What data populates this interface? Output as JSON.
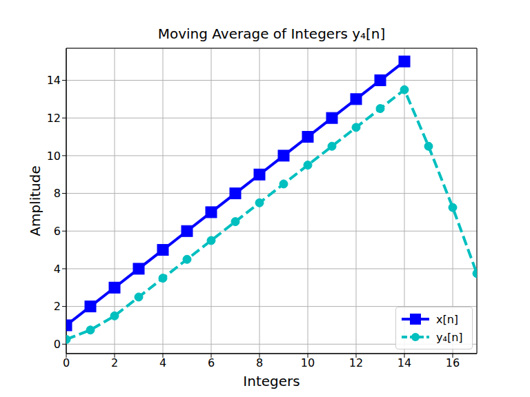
{
  "chart_data": {
    "type": "line",
    "title": "Moving Average of Integers y₄[n]",
    "x_label": "Integers",
    "y_label": "Amplitude",
    "x": [
      0,
      1,
      2,
      3,
      4,
      5,
      6,
      7,
      8,
      9,
      10,
      11,
      12,
      13,
      14,
      15,
      16,
      17
    ],
    "series": [
      {
        "name": "x[n]",
        "color": "#0000ff",
        "marker": "square",
        "line_style": "solid",
        "values": [
          1,
          2,
          3,
          4,
          5,
          6,
          7,
          8,
          9,
          10,
          11,
          12,
          13,
          14,
          15,
          null,
          null,
          null
        ]
      },
      {
        "name": "y₄[n]",
        "color": "#00bfbf",
        "marker": "circle",
        "line_style": "dashed",
        "values": [
          0.25,
          0.75,
          1.5,
          2.5,
          3.5,
          4.5,
          5.5,
          6.5,
          7.5,
          8.5,
          9.5,
          10.5,
          11.5,
          12.5,
          13.5,
          10.5,
          7.25,
          3.75
        ]
      }
    ],
    "xlim": [
      0,
      17
    ],
    "ylim": [
      -0.5,
      15.7
    ],
    "xticks": [
      0,
      2,
      4,
      6,
      8,
      10,
      12,
      14,
      16
    ],
    "yticks": [
      0,
      2,
      4,
      6,
      8,
      10,
      12,
      14
    ],
    "grid": true,
    "legend": "lower right"
  }
}
